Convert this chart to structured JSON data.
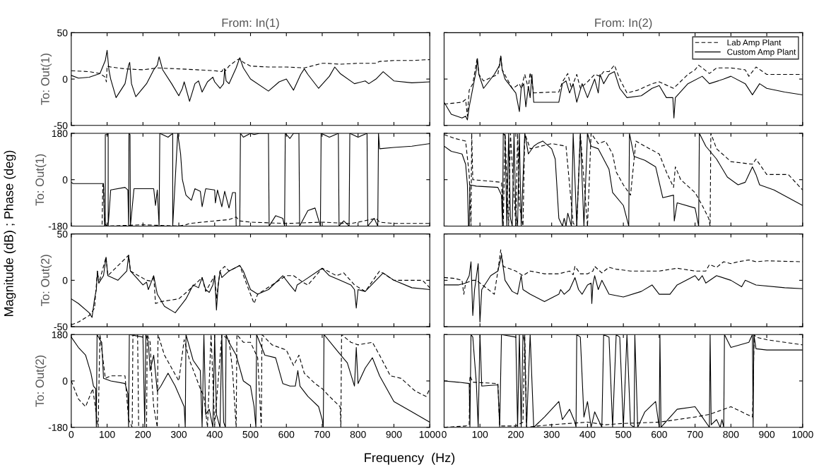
{
  "chart_data": [
    {
      "type": "line",
      "title": "From: In(1)",
      "ylabel": "To: Out(1)",
      "annotations": [
        "Magnitude (dB) ; Phase (deg)"
      ],
      "xlim": [
        0,
        1000
      ],
      "ylim": [
        -50,
        50
      ],
      "yticks": [
        -50,
        0,
        50
      ],
      "tick_labels": "y",
      "legend": false,
      "series": [
        {
          "color": "#000000",
          "line_style": "dashed",
          "x": [
            0,
            50,
            80,
            95,
            98,
            100,
            110,
            150,
            200,
            240,
            300,
            350,
            400,
            420,
            425,
            430,
            440,
            460,
            470,
            480,
            500,
            550,
            600,
            650,
            700,
            710,
            750,
            800,
            850,
            860,
            900,
            950,
            1000
          ],
          "values": [
            9,
            8,
            6,
            2,
            -3,
            14,
            13,
            11,
            10,
            12,
            11,
            10,
            9,
            8,
            12,
            9,
            14,
            20,
            22,
            18,
            14,
            13,
            13,
            12,
            17,
            17,
            16,
            17,
            17,
            19,
            20,
            20,
            21
          ]
        },
        {
          "color": "#000000",
          "line_style": "solid",
          "x": [
            0,
            20,
            50,
            80,
            95,
            100,
            105,
            110,
            125,
            150,
            160,
            163,
            168,
            180,
            210,
            230,
            240,
            245,
            255,
            280,
            300,
            310,
            315,
            330,
            345,
            355,
            365,
            380,
            395,
            400,
            415,
            425,
            428,
            432,
            440,
            460,
            470,
            480,
            500,
            550,
            580,
            600,
            620,
            640,
            650,
            660,
            690,
            720,
            735,
            750,
            790,
            820,
            830,
            850,
            870,
            900,
            950,
            1000
          ],
          "values": [
            4,
            1,
            2,
            6,
            20,
            31,
            10,
            0,
            -20,
            -5,
            15,
            18,
            -5,
            -19,
            -5,
            10,
            15,
            24,
            10,
            -5,
            -18,
            -10,
            -3,
            -24,
            -5,
            -2,
            -14,
            -3,
            2,
            -3,
            -10,
            -5,
            11,
            -2,
            -5,
            12,
            23,
            12,
            0,
            -13,
            -3,
            0,
            -12,
            5,
            11,
            5,
            -10,
            3,
            13,
            6,
            -5,
            -2,
            -5,
            0,
            8,
            -2,
            -4,
            -3
          ]
        }
      ]
    },
    {
      "type": "line",
      "title": "From: In(2)",
      "xlim": [
        0,
        1000
      ],
      "ylim": [
        -50,
        50
      ],
      "yticks": [
        -50,
        0,
        50
      ],
      "tick_labels": false,
      "legend": "top right",
      "series": [
        {
          "name": "Lab Amp Plant",
          "color": "#000000",
          "line_style": "dashed",
          "x": [
            0,
            50,
            60,
            65,
            70,
            80,
            92,
            97,
            110,
            150,
            158,
            162,
            190,
            200,
            210,
            215,
            225,
            235,
            240,
            250,
            300,
            320,
            330,
            345,
            355,
            370,
            380,
            400,
            420,
            435,
            445,
            460,
            475,
            490,
            510,
            540,
            580,
            600,
            640,
            680,
            700,
            710,
            740,
            760,
            800,
            840,
            850,
            870,
            900,
            950,
            1000
          ],
          "values": [
            -27,
            -25,
            -22,
            -40,
            -12,
            -5,
            22,
            5,
            -2,
            5,
            25,
            10,
            -10,
            -8,
            -5,
            -10,
            5,
            -10,
            7,
            -15,
            -14,
            -14,
            -3,
            6,
            -10,
            5,
            -10,
            -3,
            5,
            3,
            8,
            8,
            15,
            0,
            -15,
            -12,
            -5,
            -3,
            -10,
            5,
            10,
            15,
            6,
            12,
            12,
            10,
            3,
            13,
            5,
            5,
            5
          ]
        },
        {
          "name": "Custom Amp Plant",
          "color": "#000000",
          "line_style": "solid",
          "x": [
            0,
            20,
            50,
            60,
            65,
            70,
            80,
            90,
            93,
            97,
            110,
            140,
            155,
            158,
            162,
            170,
            200,
            210,
            215,
            222,
            228,
            235,
            240,
            245,
            250,
            300,
            320,
            330,
            340,
            350,
            360,
            370,
            385,
            400,
            420,
            430,
            435,
            445,
            460,
            475,
            490,
            510,
            550,
            580,
            600,
            620,
            638,
            641,
            645,
            680,
            720,
            740,
            780,
            800,
            840,
            860,
            880,
            900,
            950,
            1000
          ],
          "values": [
            -25,
            -38,
            -42,
            -40,
            -44,
            -30,
            -10,
            10,
            22,
            5,
            -10,
            5,
            15,
            25,
            10,
            0,
            -15,
            -35,
            -10,
            -5,
            -30,
            -8,
            -20,
            5,
            -25,
            -25,
            -25,
            -5,
            -2,
            -15,
            -5,
            -25,
            -5,
            -20,
            0,
            -15,
            5,
            -5,
            5,
            8,
            -10,
            -20,
            -18,
            -10,
            -7,
            -20,
            -20,
            -42,
            -20,
            -5,
            3,
            -5,
            0,
            3,
            -5,
            -17,
            -5,
            -10,
            -14,
            -17
          ]
        }
      ]
    },
    {
      "type": "line",
      "ylabel": "To: Out(1)",
      "xlim": [
        0,
        1000
      ],
      "ylim": [
        -180,
        180
      ],
      "yticks": [
        -180,
        0,
        180
      ],
      "tick_labels": "y",
      "legend": false,
      "series": [
        {
          "color": "#000000",
          "line_style": "dashed",
          "x": [
            0,
            80,
            86,
            88,
            90,
            93,
            100,
            200,
            300,
            320,
            330,
            400,
            440,
            450,
            460,
            470,
            500,
            600,
            700,
            780,
            800,
            850,
            860,
            900,
            1000
          ],
          "values": [
            -180,
            -180,
            -175,
            -20,
            -15,
            -170,
            -180,
            -175,
            -180,
            -175,
            -170,
            -160,
            -155,
            -150,
            -145,
            -160,
            -165,
            -170,
            -165,
            -170,
            -165,
            -150,
            -165,
            -170,
            -170
          ]
        },
        {
          "color": "#000000",
          "line_style": "solid",
          "x": [
            0,
            5,
            90,
            93,
            95,
            95,
            102,
            103,
            103,
            110,
            150,
            158,
            160,
            161,
            164,
            165,
            175,
            230,
            235,
            240,
            245,
            247,
            270,
            283,
            283,
            297,
            305,
            310,
            320,
            335,
            345,
            360,
            365,
            375,
            400,
            402,
            408,
            420,
            428,
            440,
            450,
            458,
            460,
            470,
            472,
            480,
            500,
            510,
            525,
            550,
            552,
            570,
            590,
            595,
            597,
            610,
            620,
            635,
            637,
            660,
            680,
            695,
            697,
            720,
            745,
            747,
            760,
            775,
            777,
            800,
            825,
            827,
            845,
            855,
            857,
            860,
            900,
            950,
            1000
          ],
          "values": [
            -10,
            -15,
            -15,
            -180,
            -180,
            175,
            175,
            180,
            -180,
            -40,
            -30,
            -40,
            -180,
            180,
            175,
            -180,
            -35,
            -35,
            -100,
            -40,
            -180,
            180,
            165,
            180,
            -180,
            180,
            100,
            0,
            -60,
            -80,
            -35,
            -45,
            -105,
            -35,
            -40,
            -90,
            -40,
            -105,
            -45,
            -110,
            -50,
            -50,
            -180,
            -180,
            180,
            165,
            180,
            175,
            180,
            180,
            -180,
            -140,
            -150,
            -180,
            180,
            160,
            180,
            180,
            -180,
            -120,
            -110,
            -180,
            180,
            165,
            180,
            -180,
            -160,
            -180,
            180,
            165,
            180,
            -180,
            -150,
            -180,
            180,
            120,
            125,
            130,
            140
          ]
        }
      ]
    },
    {
      "type": "line",
      "xlim": [
        0,
        1000
      ],
      "ylim": [
        -180,
        180
      ],
      "yticks": [
        -180,
        0,
        180
      ],
      "tick_labels": false,
      "legend": false,
      "series": [
        {
          "color": "#000000",
          "line_style": "dashed",
          "x": [
            0,
            30,
            60,
            70,
            75,
            77,
            80,
            160,
            165,
            170,
            180,
            185,
            200,
            205,
            210,
            220,
            225,
            240,
            300,
            340,
            360,
            370,
            380,
            400,
            410,
            430,
            450,
            470,
            480,
            500,
            520,
            535,
            560,
            600,
            620,
            640,
            645,
            660,
            700,
            720,
            738,
            742,
            744,
            760,
            800,
            860,
            870,
            900,
            960,
            1000
          ],
          "values": [
            175,
            160,
            150,
            20,
            -180,
            180,
            0,
            -10,
            -180,
            180,
            -180,
            180,
            -180,
            180,
            -100,
            -180,
            180,
            120,
            140,
            130,
            -170,
            -180,
            180,
            -180,
            180,
            140,
            150,
            100,
            30,
            -20,
            -60,
            150,
            130,
            100,
            30,
            -30,
            50,
            0,
            -50,
            -100,
            -150,
            -180,
            180,
            120,
            70,
            60,
            80,
            20,
            20,
            -40
          ]
        },
        {
          "color": "#000000",
          "line_style": "solid",
          "x": [
            0,
            20,
            50,
            60,
            65,
            68,
            70,
            72,
            90,
            150,
            160,
            163,
            165,
            170,
            175,
            180,
            185,
            190,
            195,
            200,
            205,
            210,
            215,
            225,
            235,
            250,
            260,
            275,
            300,
            310,
            320,
            330,
            335,
            340,
            345,
            355,
            360,
            370,
            380,
            390,
            400,
            410,
            430,
            460,
            470,
            500,
            515,
            517,
            530,
            560,
            590,
            610,
            640,
            642,
            650,
            700,
            710,
            712,
            730,
            760,
            790,
            820,
            840,
            860,
            870,
            880,
            920,
            960,
            1000
          ],
          "values": [
            130,
            110,
            100,
            60,
            -20,
            -180,
            -180,
            -20,
            -25,
            -30,
            -60,
            -180,
            180,
            170,
            -180,
            180,
            -150,
            -180,
            180,
            -130,
            -180,
            180,
            -180,
            180,
            100,
            130,
            140,
            150,
            120,
            80,
            -150,
            -180,
            -150,
            -180,
            -130,
            -180,
            180,
            -180,
            180,
            -180,
            180,
            130,
            120,
            40,
            -50,
            -100,
            -180,
            180,
            90,
            75,
            50,
            -70,
            -60,
            -160,
            -90,
            -110,
            -180,
            180,
            130,
            80,
            10,
            -20,
            -10,
            50,
            20,
            -20,
            -40,
            -70,
            -100
          ]
        }
      ]
    },
    {
      "type": "line",
      "ylabel": "To: Out(2)",
      "xlim": [
        0,
        1000
      ],
      "ylim": [
        -50,
        50
      ],
      "yticks": [
        -50,
        0,
        50
      ],
      "tick_labels": "y",
      "legend": false,
      "series": [
        {
          "color": "#000000",
          "line_style": "dashed",
          "x": [
            0,
            20,
            50,
            65,
            73,
            77,
            97,
            102,
            160,
            165,
            210,
            225,
            230,
            235,
            250,
            300,
            330,
            365,
            375,
            400,
            405,
            415,
            428,
            440,
            470,
            490,
            510,
            520,
            560,
            600,
            620,
            650,
            660,
            700,
            740,
            760,
            790,
            820,
            860,
            880,
            900,
            980,
            1000
          ],
          "values": [
            -48,
            -45,
            -38,
            -30,
            10,
            -3,
            25,
            5,
            27,
            10,
            0,
            -1,
            5,
            -25,
            -23,
            -20,
            -10,
            3,
            -12,
            5,
            -20,
            10,
            15,
            10,
            16,
            -5,
            -25,
            -15,
            -5,
            5,
            5,
            -3,
            -5,
            13,
            5,
            8,
            -5,
            -12,
            10,
            5,
            0,
            0,
            -8
          ]
        },
        {
          "color": "#000000",
          "line_style": "solid",
          "x": [
            0,
            20,
            50,
            58,
            65,
            70,
            73,
            77,
            90,
            97,
            102,
            130,
            155,
            160,
            165,
            200,
            210,
            215,
            225,
            230,
            240,
            260,
            290,
            320,
            340,
            355,
            365,
            375,
            385,
            395,
            400,
            405,
            410,
            415,
            420,
            440,
            460,
            470,
            480,
            500,
            520,
            550,
            590,
            610,
            625,
            630,
            650,
            700,
            720,
            750,
            780,
            790,
            795,
            800,
            820,
            850,
            870,
            900,
            950,
            1000
          ],
          "values": [
            -20,
            -25,
            -35,
            -40,
            -20,
            -10,
            10,
            -3,
            5,
            25,
            5,
            0,
            10,
            27,
            10,
            -5,
            -2,
            -10,
            0,
            5,
            -15,
            -28,
            -35,
            -20,
            -5,
            -8,
            3,
            -10,
            -13,
            -5,
            5,
            -32,
            -5,
            10,
            3,
            10,
            14,
            16,
            10,
            -10,
            -15,
            -10,
            5,
            -5,
            -12,
            -5,
            0,
            13,
            5,
            0,
            -5,
            -10,
            -30,
            -10,
            -12,
            0,
            8,
            0,
            -8,
            -10
          ]
        }
      ]
    },
    {
      "type": "line",
      "xlim": [
        0,
        1000
      ],
      "ylim": [
        -50,
        50
      ],
      "yticks": [
        -50,
        0,
        50
      ],
      "tick_labels": false,
      "legend": false,
      "series": [
        {
          "color": "#000000",
          "line_style": "dashed",
          "x": [
            0,
            30,
            50,
            55,
            60,
            80,
            90,
            100,
            140,
            150,
            158,
            165,
            200,
            220,
            240,
            280,
            320,
            350,
            360,
            365,
            380,
            400,
            415,
            420,
            440,
            460,
            480,
            520,
            600,
            650,
            700,
            730,
            740,
            760,
            780,
            800,
            820,
            850,
            870,
            900,
            1000
          ],
          "values": [
            3,
            2,
            0,
            -15,
            -3,
            0,
            0,
            -3,
            -15,
            10,
            33,
            15,
            10,
            5,
            10,
            7,
            7,
            10,
            6,
            15,
            7,
            7,
            10,
            15,
            8,
            14,
            12,
            10,
            10,
            13,
            10,
            10,
            17,
            14,
            20,
            18,
            20,
            22,
            20,
            21,
            20
          ]
        },
        {
          "color": "#000000",
          "line_style": "solid",
          "x": [
            0,
            40,
            60,
            70,
            75,
            80,
            85,
            95,
            100,
            105,
            130,
            150,
            160,
            170,
            190,
            205,
            215,
            220,
            240,
            280,
            320,
            325,
            335,
            350,
            365,
            375,
            385,
            400,
            410,
            412,
            415,
            420,
            430,
            440,
            460,
            500,
            550,
            580,
            600,
            630,
            650,
            700,
            710,
            720,
            730,
            760,
            800,
            830,
            840,
            870,
            950,
            1000
          ],
          "values": [
            -5,
            -5,
            -3,
            5,
            20,
            -38,
            -10,
            18,
            -45,
            -10,
            5,
            10,
            27,
            0,
            -12,
            -15,
            5,
            -10,
            -15,
            -23,
            -15,
            -10,
            -15,
            -10,
            3,
            -10,
            -15,
            -5,
            -3,
            -25,
            -5,
            5,
            -10,
            0,
            -15,
            -18,
            -12,
            -5,
            -15,
            -15,
            -5,
            5,
            0,
            5,
            -3,
            5,
            0,
            -7,
            0,
            -5,
            -8,
            -9
          ]
        }
      ]
    },
    {
      "type": "line",
      "ylabel": "To: Out(2)",
      "xlabel": "Frequency  (Hz)",
      "xlim": [
        0,
        1000
      ],
      "xticks": [
        0,
        100,
        200,
        300,
        400,
        500,
        600,
        700,
        800,
        900,
        1000
      ],
      "ylim": [
        -180,
        180
      ],
      "yticks": [
        -180,
        0,
        180
      ],
      "legend": false,
      "series": [
        {
          "color": "#000000",
          "line_style": "dashed",
          "x": [
            0,
            20,
            40,
            60,
            75,
            80,
            95,
            110,
            150,
            160,
            170,
            172,
            185,
            188,
            210,
            212,
            220,
            225,
            230,
            240,
            242,
            260,
            300,
            315,
            330,
            360,
            370,
            380,
            390,
            400,
            420,
            440,
            450,
            460,
            462,
            480,
            500,
            520,
            530,
            532,
            560,
            600,
            620,
            635,
            650,
            680,
            700,
            720,
            750,
            752,
            754,
            780,
            800,
            840,
            860,
            890,
            920,
            960,
            990,
            1000
          ],
          "values": [
            0,
            -70,
            -100,
            -30,
            -180,
            180,
            10,
            20,
            20,
            -150,
            -180,
            180,
            180,
            -180,
            -180,
            180,
            150,
            0,
            -100,
            -180,
            180,
            100,
            0,
            160,
            80,
            -30,
            -60,
            -180,
            180,
            -170,
            180,
            160,
            40,
            -180,
            180,
            150,
            150,
            90,
            -180,
            180,
            140,
            120,
            60,
            100,
            30,
            -10,
            -30,
            -60,
            -100,
            -180,
            180,
            150,
            140,
            150,
            100,
            20,
            10,
            -40,
            -60,
            -30
          ]
        },
        {
          "color": "#000000",
          "line_style": "solid",
          "x": [
            0,
            20,
            40,
            55,
            62,
            68,
            70,
            72,
            80,
            85,
            90,
            110,
            150,
            158,
            160,
            162,
            200,
            205,
            208,
            215,
            220,
            230,
            240,
            250,
            270,
            290,
            315,
            318,
            320,
            340,
            360,
            365,
            370,
            375,
            385,
            395,
            400,
            405,
            415,
            420,
            425,
            430,
            432,
            440,
            460,
            480,
            500,
            510,
            515,
            517,
            540,
            570,
            590,
            610,
            625,
            632,
            638,
            660,
            690,
            700,
            703,
            705,
            740,
            770,
            790,
            795,
            800,
            820,
            840,
            860,
            900,
            950,
            1000
          ],
          "values": [
            170,
            130,
            100,
            30,
            -20,
            -30,
            -180,
            180,
            160,
            150,
            10,
            0,
            -10,
            -50,
            -180,
            180,
            170,
            -180,
            180,
            150,
            40,
            100,
            -40,
            -20,
            30,
            -20,
            -100,
            -180,
            180,
            80,
            40,
            -180,
            180,
            -130,
            -110,
            -180,
            180,
            -130,
            -180,
            180,
            -160,
            -180,
            180,
            150,
            100,
            0,
            -20,
            -100,
            -180,
            180,
            100,
            90,
            -10,
            -20,
            -20,
            40,
            -20,
            -60,
            -100,
            -150,
            -180,
            180,
            120,
            70,
            -20,
            130,
            -10,
            50,
            90,
            20,
            -80,
            -120,
            -160
          ]
        }
      ]
    },
    {
      "type": "line",
      "xlim": [
        0,
        1000
      ],
      "xticks": [
        0,
        100,
        200,
        300,
        400,
        500,
        600,
        700,
        800,
        900,
        1000
      ],
      "ylim": [
        -180,
        180
      ],
      "yticks": [
        -180,
        0,
        180
      ],
      "tick_labels": "x",
      "legend": false,
      "series": [
        {
          "color": "#000000",
          "line_style": "dashed",
          "x": [
            0,
            60,
            70,
            72,
            80,
            150,
            155,
            200,
            220,
            225,
            230,
            260,
            300,
            400,
            450,
            500,
            600,
            650,
            700,
            740,
            760,
            800,
            830,
            860,
            865,
            870,
            900,
            950,
            1000
          ],
          "values": [
            -180,
            -175,
            -170,
            20,
            -5,
            -10,
            -175,
            -175,
            -160,
            180,
            -180,
            -175,
            -170,
            -160,
            -170,
            -165,
            -160,
            -150,
            -140,
            -130,
            -120,
            -100,
            -120,
            -140,
            180,
            170,
            160,
            150,
            140
          ]
        },
        {
          "color": "#000000",
          "line_style": "solid",
          "x": [
            0,
            40,
            70,
            72,
            75,
            80,
            90,
            95,
            100,
            105,
            150,
            155,
            160,
            200,
            205,
            210,
            215,
            220,
            225,
            230,
            240,
            250,
            280,
            320,
            330,
            350,
            365,
            368,
            370,
            380,
            390,
            400,
            410,
            420,
            430,
            440,
            445,
            460,
            470,
            480,
            490,
            500,
            510,
            520,
            530,
            532,
            540,
            560,
            590,
            600,
            602,
            605,
            650,
            700,
            720,
            740,
            742,
            745,
            760,
            770,
            775,
            780,
            782,
            800,
            850,
            860,
            862,
            864,
            870,
            900,
            1000
          ],
          "values": [
            0,
            -5,
            -10,
            -180,
            180,
            170,
            -10,
            -180,
            180,
            -20,
            -15,
            -180,
            180,
            170,
            -180,
            180,
            -180,
            180,
            150,
            -180,
            180,
            -180,
            -140,
            -80,
            -150,
            -110,
            -160,
            -180,
            180,
            170,
            -140,
            -80,
            -180,
            -120,
            -150,
            -180,
            180,
            170,
            -180,
            180,
            170,
            -180,
            180,
            -170,
            -180,
            180,
            -180,
            -120,
            -80,
            -180,
            180,
            -180,
            -110,
            -100,
            -140,
            -180,
            180,
            -170,
            -150,
            -180,
            -150,
            -180,
            180,
            130,
            150,
            180,
            -180,
            180,
            125,
            120,
            120
          ]
        }
      ]
    }
  ]
}
